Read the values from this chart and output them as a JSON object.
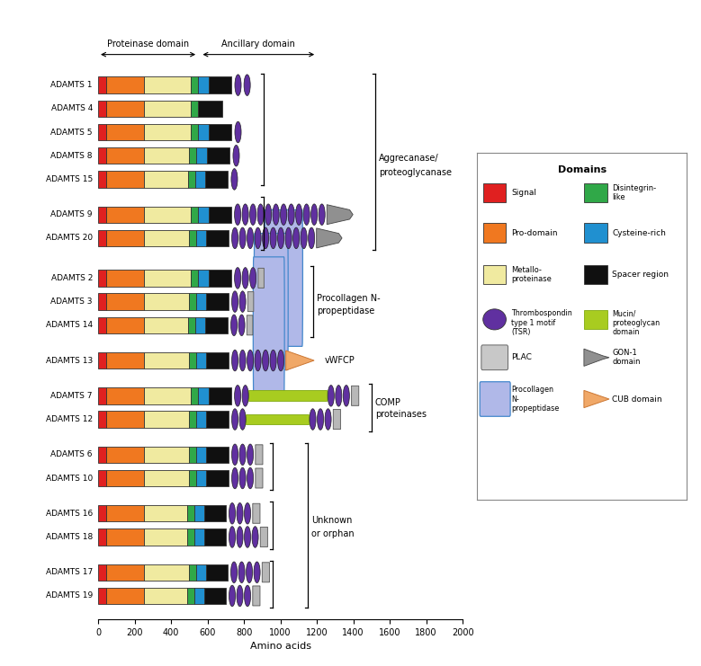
{
  "colors": {
    "signal": "#e02020",
    "pro_domain": "#f07820",
    "metallo": "#f0eaa0",
    "disintegrin": "#30a848",
    "cysteine": "#2090d0",
    "spacer": "#101010",
    "TSR": "#6030a0",
    "PLAC_fill": "#c0c0c0",
    "GON1": "#909090",
    "procollagen": "#b0b8e8",
    "CUB": "#f0a868",
    "mucin": "#a8cc20",
    "background": "#ffffff"
  },
  "xlim": [
    0,
    2000
  ],
  "xticks": [
    0,
    200,
    400,
    600,
    800,
    1000,
    1200,
    1400,
    1600,
    1800,
    2000
  ],
  "xlabel": "Amino acids"
}
